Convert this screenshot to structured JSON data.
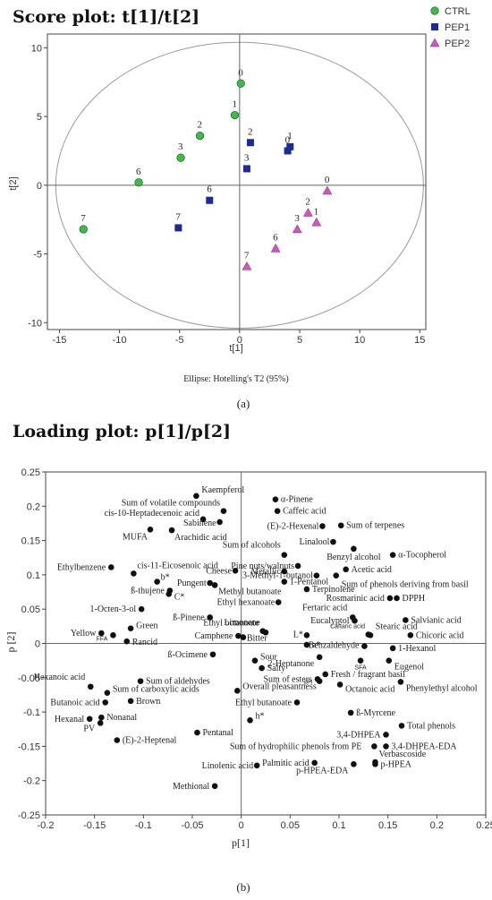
{
  "panel_a": {
    "title": "Score plot: t[1]/t[2]",
    "caption": "(a)",
    "ellipse_note": "Ellipse: Hotelling's T2 (95%)"
  },
  "panel_b": {
    "title": "Loading plot: p[1]/p[2]",
    "caption": "(b)"
  },
  "colors": {
    "CTRL": "#3bbf3b",
    "PEP1": "#1c2a99",
    "PEP2": "#cc55cc",
    "loading": "#111111",
    "ellipse": "#9a9a9a"
  },
  "chart_data": [
    {
      "type": "scatter",
      "title": "Score plot: t[1]/t[2]",
      "xlabel": "t[1]",
      "ylabel": "t[2]",
      "xlim": [
        -16,
        15.5
      ],
      "ylim": [
        -10.5,
        11
      ],
      "xticks": [
        -15,
        -10,
        -5,
        0,
        5,
        10,
        15
      ],
      "yticks": [
        10,
        5,
        0,
        -5,
        -10
      ],
      "legend_position": "top-right",
      "ellipse": {
        "label": "Ellipse: Hotelling's T2 (95%)",
        "rx": 15.3,
        "ry": 10.4
      },
      "series": [
        {
          "name": "CTRL",
          "marker": "circle",
          "points": [
            {
              "label": "0",
              "x": 0.1,
              "y": 7.4
            },
            {
              "label": "1",
              "x": -0.4,
              "y": 5.1
            },
            {
              "label": "2",
              "x": -3.3,
              "y": 3.6
            },
            {
              "label": "3",
              "x": -4.9,
              "y": 2.0
            },
            {
              "label": "6",
              "x": -8.4,
              "y": 0.2
            },
            {
              "label": "7",
              "x": -13.0,
              "y": -3.2
            }
          ]
        },
        {
          "name": "PEP1",
          "marker": "square",
          "points": [
            {
              "label": "1",
              "x": 4.2,
              "y": 2.8
            },
            {
              "label": "0",
              "x": 4.0,
              "y": 2.5
            },
            {
              "label": "2",
              "x": 0.9,
              "y": 3.1
            },
            {
              "label": "3",
              "x": 0.6,
              "y": 1.2
            },
            {
              "label": "6",
              "x": -2.5,
              "y": -1.1
            },
            {
              "label": "7",
              "x": -5.1,
              "y": -3.1
            }
          ]
        },
        {
          "name": "PEP2",
          "marker": "triangle",
          "points": [
            {
              "label": "0",
              "x": 7.3,
              "y": -0.4
            },
            {
              "label": "2",
              "x": 5.7,
              "y": -2.0
            },
            {
              "label": "1",
              "x": 6.4,
              "y": -2.7
            },
            {
              "label": "3",
              "x": 4.8,
              "y": -3.2
            },
            {
              "label": "6",
              "x": 3.0,
              "y": -4.6
            },
            {
              "label": "7",
              "x": 0.6,
              "y": -5.9
            }
          ]
        }
      ]
    },
    {
      "type": "scatter",
      "title": "Loading plot: p[1]/p[2]",
      "xlabel": "p[1]",
      "ylabel": "p [2]",
      "xlim": [
        -0.2,
        0.25
      ],
      "ylim": [
        -0.25,
        0.25
      ],
      "xticks": [
        -0.2,
        -0.15,
        -0.1,
        -0.05,
        0,
        0.05,
        0.1,
        0.15,
        0.2,
        0.25
      ],
      "yticks": [
        0.25,
        0.2,
        0.15,
        0.1,
        0.05,
        0,
        -0.05,
        -0.1,
        -0.15,
        -0.2,
        -0.25
      ],
      "xtick_labels": [
        "-0.2",
        "-0.15",
        "-0.1",
        "-0.05",
        "0",
        "0.05",
        "0.1",
        "0.15",
        "0.2",
        "0.25"
      ],
      "ytick_labels": [
        "0.25",
        "0.2",
        "0.15",
        "0.1",
        "0.05",
        "0",
        "-0.05",
        "-0.1",
        "-0.15",
        "-0.2",
        "-0.25"
      ],
      "points": [
        {
          "label": "Kaempferol",
          "x": -0.046,
          "y": 0.215
        },
        {
          "label": "Sum of volatile compounds",
          "x": -0.018,
          "y": 0.193
        },
        {
          "label": "cis-10-Heptadecenoic acid",
          "x": -0.039,
          "y": 0.181
        },
        {
          "label": "Sabinene",
          "x": -0.022,
          "y": 0.177
        },
        {
          "label": "MUFA",
          "x": -0.093,
          "y": 0.166
        },
        {
          "label": "Arachidic acid",
          "x": -0.071,
          "y": 0.165
        },
        {
          "label": "α-Pinene",
          "x": 0.035,
          "y": 0.21
        },
        {
          "label": "Caffeic acid",
          "x": 0.037,
          "y": 0.193
        },
        {
          "label": "(E)-2-Hexenal",
          "x": 0.083,
          "y": 0.171
        },
        {
          "label": "Sum of terpenes",
          "x": 0.102,
          "y": 0.172
        },
        {
          "label": "Linalool",
          "x": 0.094,
          "y": 0.148
        },
        {
          "label": "Sum of alcohols",
          "x": 0.044,
          "y": 0.129
        },
        {
          "label": "Benzyl alcohol",
          "x": 0.115,
          "y": 0.138
        },
        {
          "label": "α-Tocopherol",
          "x": 0.155,
          "y": 0.129
        },
        {
          "label": "Ethylbenzene",
          "x": -0.133,
          "y": 0.111
        },
        {
          "label": "cis-11-Eicosenoic acid",
          "x": -0.11,
          "y": 0.102
        },
        {
          "label": "Pine nuts/walnuts",
          "x": 0.058,
          "y": 0.113
        },
        {
          "label": "Acetic acid",
          "x": 0.107,
          "y": 0.108
        },
        {
          "label": "Cheese",
          "x": -0.006,
          "y": 0.106
        },
        {
          "label": "Metallic",
          "x": 0.044,
          "y": 0.105
        },
        {
          "label": "3-Methyl-1-butanol",
          "x": 0.077,
          "y": 0.099
        },
        {
          "label": "Sum of phenols deriving from basil",
          "x": 0.097,
          "y": 0.099
        },
        {
          "label": "b*",
          "x": -0.086,
          "y": 0.09
        },
        {
          "label": "1-Pentanol",
          "x": 0.044,
          "y": 0.09
        },
        {
          "label": "Pungent",
          "x": -0.032,
          "y": 0.088
        },
        {
          "label": "Methyl butanoate",
          "x": -0.027,
          "y": 0.085
        },
        {
          "label": "Terpinolene",
          "x": 0.067,
          "y": 0.079
        },
        {
          "label": "ß-thujene",
          "x": -0.073,
          "y": 0.077
        },
        {
          "label": "C*",
          "x": -0.074,
          "y": 0.072
        },
        {
          "label": "1-Octen-3-ol",
          "x": -0.102,
          "y": 0.05
        },
        {
          "label": "Rosmarinic acid",
          "x": 0.152,
          "y": 0.066
        },
        {
          "label": "DPPH",
          "x": 0.159,
          "y": 0.066
        },
        {
          "label": "Ethyl hexanoate",
          "x": 0.038,
          "y": 0.06
        },
        {
          "label": "Fertaric acid",
          "x": 0.114,
          "y": 0.038
        },
        {
          "label": "ß-Pinene",
          "x": -0.032,
          "y": 0.038
        },
        {
          "label": "Eucalyptol",
          "x": 0.116,
          "y": 0.033
        },
        {
          "label": "Salvianic acid",
          "x": 0.168,
          "y": 0.034
        },
        {
          "label": "Ethyl octanoate",
          "x": 0.022,
          "y": 0.018
        },
        {
          "label": "Limonene",
          "x": 0.025,
          "y": 0.016
        },
        {
          "label": "Stearic acid",
          "x": 0.13,
          "y": 0.013
        },
        {
          "label": "Chicoric acid",
          "x": 0.173,
          "y": 0.012
        },
        {
          "label": "Yellow",
          "x": -0.143,
          "y": 0.015
        },
        {
          "label": "Green",
          "x": -0.113,
          "y": 0.022
        },
        {
          "label": "FFA",
          "x": -0.131,
          "y": 0.012
        },
        {
          "label": "Rancid",
          "x": -0.117,
          "y": 0.003
        },
        {
          "label": "Camphene",
          "x": -0.003,
          "y": 0.011
        },
        {
          "label": "Bitter",
          "x": 0.002,
          "y": 0.009
        },
        {
          "label": "L*",
          "x": 0.067,
          "y": 0.012
        },
        {
          "label": "Caftaric acid",
          "x": 0.132,
          "y": 0.012
        },
        {
          "label": "a*",
          "x": 0.067,
          "y": -0.002
        },
        {
          "label": "Benzaldehyde",
          "x": 0.126,
          "y": -0.004
        },
        {
          "label": "1-Hexanol",
          "x": 0.155,
          "y": -0.007
        },
        {
          "label": "ß-Ocimene",
          "x": -0.029,
          "y": -0.016
        },
        {
          "label": "Hexanoic acid",
          "x": -0.154,
          "y": -0.063
        },
        {
          "label": "Sum of aldehydes",
          "x": -0.103,
          "y": -0.055
        },
        {
          "label": "Sour",
          "x": 0.014,
          "y": -0.025
        },
        {
          "label": "2-Heptanone",
          "x": 0.08,
          "y": -0.02
        },
        {
          "label": "SFA",
          "x": 0.122,
          "y": -0.025
        },
        {
          "label": "Eugenol",
          "x": 0.151,
          "y": -0.025
        },
        {
          "label": "Salty",
          "x": 0.021,
          "y": -0.036
        },
        {
          "label": "Sum of carboxylic acids",
          "x": -0.137,
          "y": -0.072
        },
        {
          "label": "Overall pleasantness",
          "x": -0.004,
          "y": -0.069
        },
        {
          "label": "Fresh / fragrant basil",
          "x": 0.086,
          "y": -0.045
        },
        {
          "label": "Sum of esters",
          "x": 0.078,
          "y": -0.052
        },
        {
          "label": "pH",
          "x": 0.08,
          "y": -0.055
        },
        {
          "label": "Octanoic acid",
          "x": 0.101,
          "y": -0.06
        },
        {
          "label": "Phenylethyl alcohol",
          "x": 0.163,
          "y": -0.056
        },
        {
          "label": "Butanoic acid",
          "x": -0.139,
          "y": -0.086
        },
        {
          "label": "Brown",
          "x": -0.113,
          "y": -0.084
        },
        {
          "label": "Ethyl butanoate",
          "x": 0.057,
          "y": -0.086
        },
        {
          "label": "ß-Myrcene",
          "x": 0.112,
          "y": -0.101
        },
        {
          "label": "Hexanal",
          "x": -0.155,
          "y": -0.11
        },
        {
          "label": "Nonanal",
          "x": -0.143,
          "y": -0.108
        },
        {
          "label": "PV",
          "x": -0.144,
          "y": -0.116
        },
        {
          "label": "h*",
          "x": 0.009,
          "y": -0.112
        },
        {
          "label": "Total phenols",
          "x": 0.164,
          "y": -0.12
        },
        {
          "label": "3,4-DHPEA",
          "x": 0.148,
          "y": -0.133
        },
        {
          "label": "(E)-2-Heptenal",
          "x": -0.127,
          "y": -0.141
        },
        {
          "label": "Pentanal",
          "x": -0.045,
          "y": -0.13
        },
        {
          "label": "3,4-DHPEA-EDA",
          "x": 0.148,
          "y": -0.15
        },
        {
          "label": "Sum of hydrophilic phenols from PE",
          "x": 0.136,
          "y": -0.15
        },
        {
          "label": "Verbascoside",
          "x": 0.137,
          "y": -0.173
        },
        {
          "label": "Palmitic acid",
          "x": 0.075,
          "y": -0.174
        },
        {
          "label": "p-HPEA",
          "x": 0.137,
          "y": -0.176
        },
        {
          "label": "p-HPEA-EDA",
          "x": 0.115,
          "y": -0.176
        },
        {
          "label": "Linolenic acid",
          "x": 0.016,
          "y": -0.178
        },
        {
          "label": "Methional",
          "x": -0.027,
          "y": -0.208
        }
      ]
    }
  ]
}
